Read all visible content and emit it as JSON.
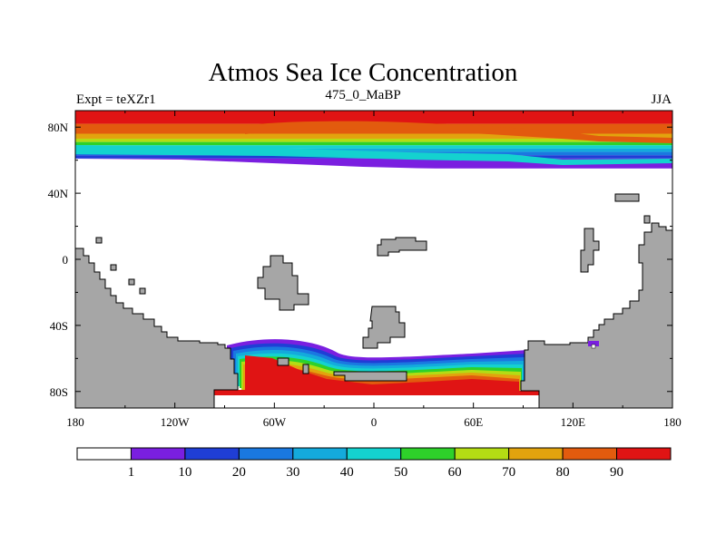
{
  "chart_data": {
    "type": "heatmap",
    "title": "Atmos Sea Ice Concentration",
    "subtitle": "475_0_MaBP",
    "left_label": "Expt = teXZr1",
    "right_label": "JJA",
    "x_ticks": [
      "180",
      "120W",
      "60W",
      "0",
      "60E",
      "120E",
      "180"
    ],
    "x_tick_values": [
      -180,
      -120,
      -60,
      0,
      60,
      120,
      180
    ],
    "y_ticks": [
      "80N",
      "40N",
      "0",
      "40S",
      "80S"
    ],
    "y_tick_values": [
      80,
      40,
      0,
      -40,
      -80
    ],
    "xlim": [
      -180,
      180
    ],
    "ylim": [
      -90,
      90
    ],
    "colorbar": {
      "labels": [
        "1",
        "10",
        "20",
        "30",
        "40",
        "50",
        "60",
        "70",
        "80",
        "90"
      ],
      "colors": [
        "#ffffff",
        "#7a1fe0",
        "#1f3ed6",
        "#1a78e0",
        "#14aadc",
        "#14d2cf",
        "#2ed12a",
        "#b4dc14",
        "#e2a30e",
        "#e25b0e",
        "#e01414"
      ]
    },
    "north_ice_bands": [
      {
        "lat_min": 82,
        "lat_max": 90,
        "value": 95
      },
      {
        "lat_min": 76,
        "lat_max": 82,
        "value": 85
      },
      {
        "lat_min": 73,
        "lat_max": 76,
        "value": 75
      },
      {
        "lat_min": 71,
        "lat_max": 73,
        "value": 65
      },
      {
        "lat_min": 69,
        "lat_max": 71,
        "value": 55
      },
      {
        "lat_min": 67,
        "lat_max": 69,
        "value": 45
      },
      {
        "lat_min": 65,
        "lat_max": 67,
        "value": 35
      },
      {
        "lat_min": 63,
        "lat_max": 65,
        "value": 25
      },
      {
        "lat_min": 61,
        "lat_max": 63,
        "value": 15
      },
      {
        "lat_min": 55,
        "lat_max": 61,
        "value": 5
      }
    ],
    "land_color": "#a6a6a6",
    "colors": {
      "land": "#a6a6a6",
      "outline": "#000000"
    }
  }
}
